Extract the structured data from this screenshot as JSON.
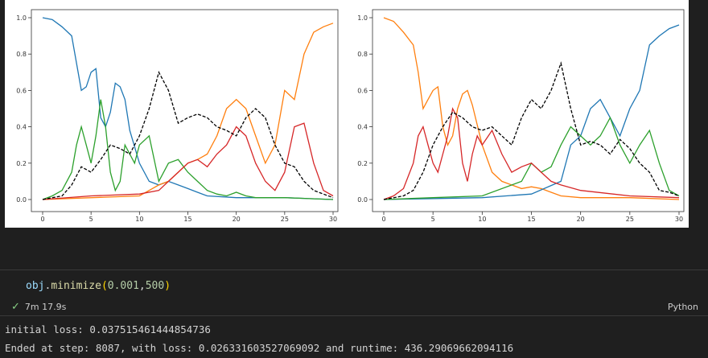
{
  "charts": {
    "x_ticks": [
      "0",
      "5",
      "10",
      "15",
      "20",
      "25",
      "30"
    ],
    "y_ticks": [
      "0.0",
      "0.2",
      "0.4",
      "0.6",
      "0.8",
      "1.0"
    ],
    "colors": {
      "blue": "#1f77b4",
      "orange": "#ff7f0e",
      "green": "#2ca02c",
      "red": "#d62728",
      "black": "#000000"
    }
  },
  "chart_data": [
    {
      "type": "line",
      "xlim": [
        0,
        30
      ],
      "ylim": [
        0,
        1
      ],
      "series": [
        {
          "color": "#1f77b4",
          "x": [
            0,
            1,
            2,
            3,
            3.5,
            4,
            4.5,
            5,
            5.5,
            6,
            6.5,
            7,
            7.5,
            8,
            8.5,
            9,
            10,
            11,
            12,
            13,
            14,
            15,
            16,
            17,
            20,
            25,
            30
          ],
          "y": [
            1.0,
            0.99,
            0.95,
            0.9,
            0.75,
            0.6,
            0.62,
            0.7,
            0.72,
            0.45,
            0.4,
            0.48,
            0.64,
            0.62,
            0.55,
            0.38,
            0.2,
            0.1,
            0.08,
            0.1,
            0.08,
            0.06,
            0.04,
            0.02,
            0.01,
            0.01,
            0.0
          ]
        },
        {
          "color": "#ff7f0e",
          "x": [
            0,
            10,
            11,
            12,
            13,
            14,
            15,
            16,
            17,
            18,
            19,
            20,
            21,
            22,
            23,
            24,
            25,
            26,
            27,
            28,
            29,
            30
          ],
          "y": [
            0.0,
            0.02,
            0.05,
            0.08,
            0.1,
            0.15,
            0.2,
            0.22,
            0.25,
            0.35,
            0.5,
            0.55,
            0.5,
            0.35,
            0.2,
            0.3,
            0.6,
            0.55,
            0.8,
            0.92,
            0.95,
            0.97
          ]
        },
        {
          "color": "#2ca02c",
          "x": [
            0,
            1,
            2,
            3,
            3.5,
            4,
            4.5,
            5,
            5.5,
            6,
            6.5,
            7,
            7.5,
            8,
            8.5,
            9,
            9.5,
            10,
            11,
            12,
            13,
            14,
            15,
            16,
            17,
            18,
            19,
            20,
            21,
            22,
            25,
            30
          ],
          "y": [
            0.0,
            0.02,
            0.05,
            0.15,
            0.3,
            0.4,
            0.3,
            0.2,
            0.35,
            0.55,
            0.4,
            0.15,
            0.05,
            0.1,
            0.3,
            0.25,
            0.2,
            0.3,
            0.35,
            0.1,
            0.2,
            0.22,
            0.15,
            0.1,
            0.05,
            0.03,
            0.02,
            0.04,
            0.02,
            0.01,
            0.01,
            0.0
          ]
        },
        {
          "color": "#d62728",
          "x": [
            0,
            5,
            10,
            12,
            13,
            14,
            15,
            16,
            17,
            18,
            19,
            20,
            21,
            22,
            23,
            24,
            25,
            26,
            27,
            28,
            29,
            30
          ],
          "y": [
            0.0,
            0.02,
            0.03,
            0.05,
            0.1,
            0.15,
            0.2,
            0.22,
            0.18,
            0.25,
            0.3,
            0.4,
            0.35,
            0.2,
            0.1,
            0.05,
            0.15,
            0.4,
            0.42,
            0.2,
            0.05,
            0.02
          ]
        },
        {
          "color": "#000000",
          "dashed": true,
          "x": [
            0,
            2,
            3,
            4,
            5,
            6,
            7,
            8,
            9,
            10,
            11,
            12,
            13,
            14,
            15,
            16,
            17,
            18,
            19,
            20,
            21,
            22,
            23,
            24,
            25,
            26,
            27,
            28,
            29,
            30
          ],
          "y": [
            0.0,
            0.02,
            0.08,
            0.18,
            0.15,
            0.22,
            0.3,
            0.28,
            0.25,
            0.35,
            0.5,
            0.7,
            0.6,
            0.42,
            0.45,
            0.47,
            0.45,
            0.4,
            0.38,
            0.35,
            0.45,
            0.5,
            0.45,
            0.3,
            0.2,
            0.18,
            0.1,
            0.05,
            0.03,
            0.01
          ]
        }
      ]
    },
    {
      "type": "line",
      "xlim": [
        0,
        30
      ],
      "ylim": [
        0,
        1
      ],
      "series": [
        {
          "color": "#ff7f0e",
          "x": [
            0,
            1,
            2,
            3,
            3.5,
            4,
            4.5,
            5,
            5.5,
            6,
            6.5,
            7,
            7.5,
            8,
            8.5,
            9,
            10,
            11,
            12,
            13,
            14,
            15,
            16,
            17,
            18,
            20,
            25,
            30
          ],
          "y": [
            1.0,
            0.98,
            0.92,
            0.85,
            0.7,
            0.5,
            0.55,
            0.6,
            0.62,
            0.4,
            0.3,
            0.35,
            0.5,
            0.58,
            0.6,
            0.52,
            0.3,
            0.15,
            0.1,
            0.08,
            0.06,
            0.07,
            0.06,
            0.04,
            0.02,
            0.01,
            0.01,
            0.0
          ]
        },
        {
          "color": "#1f77b4",
          "x": [
            0,
            10,
            15,
            18,
            19,
            20,
            21,
            22,
            23,
            24,
            25,
            26,
            27,
            28,
            29,
            30
          ],
          "y": [
            0.0,
            0.01,
            0.03,
            0.1,
            0.3,
            0.35,
            0.5,
            0.55,
            0.45,
            0.35,
            0.5,
            0.6,
            0.85,
            0.9,
            0.94,
            0.96
          ]
        },
        {
          "color": "#2ca02c",
          "x": [
            0,
            5,
            10,
            14,
            15,
            16,
            17,
            18,
            19,
            20,
            21,
            22,
            23,
            24,
            25,
            26,
            27,
            28,
            29,
            30
          ],
          "y": [
            0.0,
            0.01,
            0.02,
            0.1,
            0.2,
            0.15,
            0.18,
            0.3,
            0.4,
            0.35,
            0.3,
            0.35,
            0.45,
            0.3,
            0.2,
            0.3,
            0.38,
            0.2,
            0.05,
            0.02
          ]
        },
        {
          "color": "#d62728",
          "x": [
            0,
            1,
            2,
            3,
            3.5,
            4,
            4.5,
            5,
            5.5,
            6,
            6.5,
            7,
            7.5,
            8,
            8.5,
            9,
            9.5,
            10,
            11,
            12,
            13,
            14,
            15,
            16,
            17,
            18,
            20,
            25,
            30
          ],
          "y": [
            0.0,
            0.02,
            0.06,
            0.2,
            0.35,
            0.4,
            0.3,
            0.2,
            0.15,
            0.25,
            0.35,
            0.5,
            0.45,
            0.2,
            0.1,
            0.25,
            0.35,
            0.3,
            0.38,
            0.25,
            0.15,
            0.18,
            0.2,
            0.15,
            0.1,
            0.08,
            0.05,
            0.02,
            0.01
          ]
        },
        {
          "color": "#000000",
          "dashed": true,
          "x": [
            0,
            2,
            3,
            4,
            5,
            6,
            7,
            8,
            9,
            10,
            11,
            12,
            13,
            14,
            15,
            16,
            17,
            18,
            19,
            20,
            21,
            22,
            23,
            24,
            25,
            26,
            27,
            28,
            29,
            30
          ],
          "y": [
            0.0,
            0.02,
            0.05,
            0.15,
            0.3,
            0.4,
            0.48,
            0.45,
            0.4,
            0.38,
            0.4,
            0.35,
            0.3,
            0.45,
            0.55,
            0.5,
            0.6,
            0.75,
            0.5,
            0.3,
            0.32,
            0.3,
            0.25,
            0.33,
            0.28,
            0.2,
            0.15,
            0.05,
            0.04,
            0.02
          ]
        }
      ]
    }
  ],
  "cell": {
    "code": {
      "obj": "obj",
      "dot": ".",
      "fn": "minimize",
      "open": "(",
      "arg1": "0.001",
      "comma": ",",
      "arg2": "500",
      "close": ")"
    },
    "status": {
      "icon": "check-icon",
      "duration": "7m 17.9s"
    },
    "language": "Python"
  },
  "output": {
    "line1": "initial loss: 0.037515461444854736",
    "line2": "Ended at step: 8087, with loss: 0.026331603527069092 and runtime: 436.29069662094116"
  }
}
